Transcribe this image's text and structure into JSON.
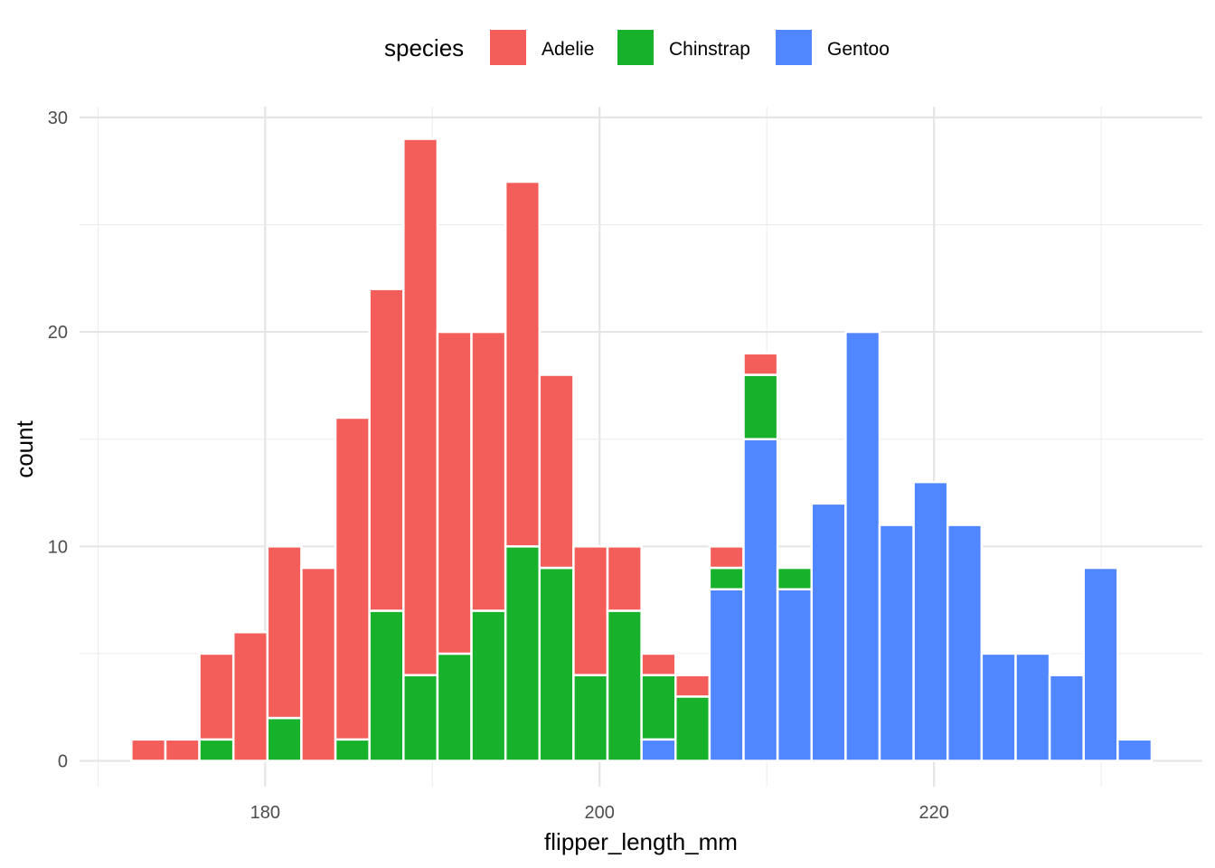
{
  "chart_data": {
    "type": "bar",
    "subtype": "stacked-histogram",
    "xlabel": "flipper_length_mm",
    "ylabel": "count",
    "xlim": [
      168.9,
      236.05
    ],
    "ylim": [
      -1.2,
      30.5
    ],
    "x_major_ticks": [
      180,
      200,
      220
    ],
    "x_minor_ticks": [
      170,
      190,
      210,
      230
    ],
    "y_major_ticks": [
      0,
      10,
      20,
      30
    ],
    "y_minor_ticks": [
      5,
      15,
      25
    ],
    "grid": true,
    "bin_start": 172.0,
    "bin_width": 2.034,
    "legend": {
      "title": "species",
      "placement": "top"
    },
    "series": [
      {
        "name": "Adelie",
        "color": "#F35E5A",
        "values": [
          1,
          1,
          4,
          6,
          8,
          9,
          15,
          15,
          25,
          15,
          13,
          17,
          9,
          6,
          3,
          1,
          1,
          1,
          1,
          0,
          0,
          0,
          0,
          0,
          0,
          0,
          0,
          0,
          0,
          0
        ]
      },
      {
        "name": "Chinstrap",
        "color": "#17B12B",
        "values": [
          0,
          0,
          1,
          0,
          2,
          0,
          1,
          7,
          4,
          5,
          7,
          10,
          9,
          4,
          7,
          3,
          3,
          1,
          3,
          1,
          0,
          0,
          0,
          0,
          0,
          0,
          0,
          0,
          0,
          0
        ]
      },
      {
        "name": "Gentoo",
        "color": "#5086FF",
        "values": [
          0,
          0,
          0,
          0,
          0,
          0,
          0,
          0,
          0,
          0,
          0,
          0,
          0,
          0,
          0,
          1,
          0,
          8,
          15,
          8,
          12,
          20,
          11,
          13,
          11,
          5,
          5,
          4,
          9,
          1
        ]
      }
    ]
  }
}
